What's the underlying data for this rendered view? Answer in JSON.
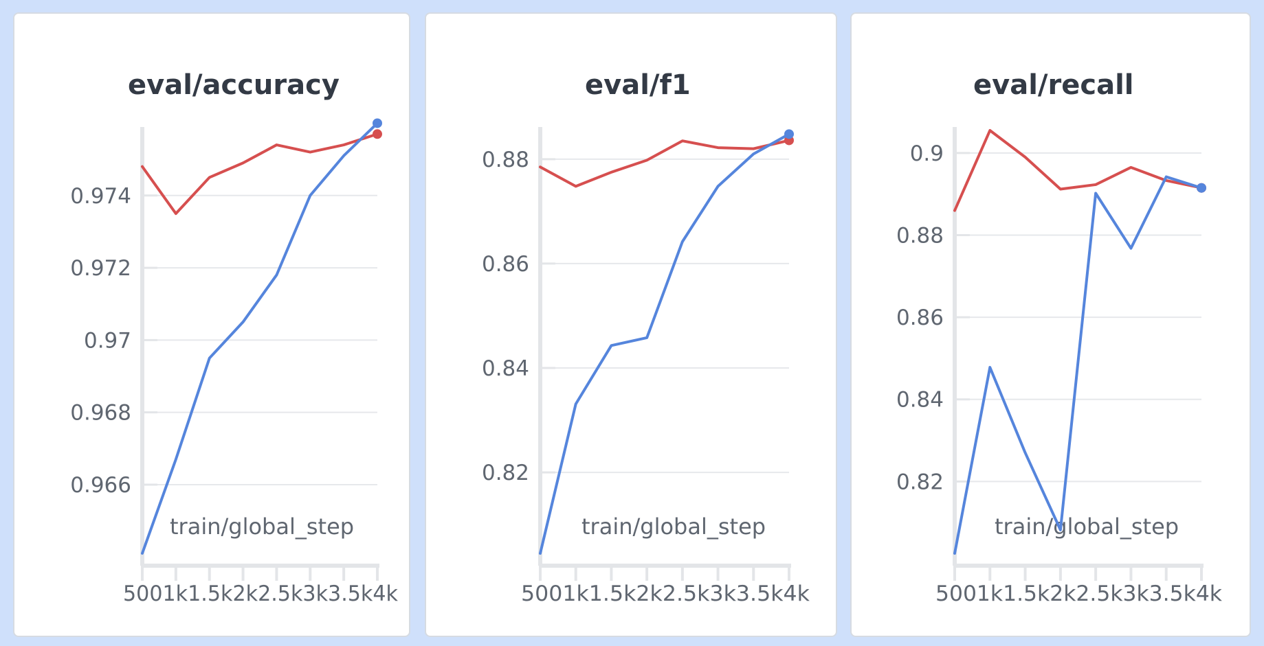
{
  "colors": {
    "red_series": "#d64f4f",
    "blue_series": "#5585dc",
    "axis": "#e3e5e8",
    "grid": "#e6e8eb"
  },
  "chart_data": [
    {
      "type": "line",
      "title": "eval/accuracy",
      "xlabel": "train/global_step",
      "ylabel": "",
      "x": [
        500,
        1000,
        1500,
        2000,
        2500,
        3000,
        3500,
        4000
      ],
      "xticks": [
        500,
        1000,
        1500,
        2000,
        2500,
        3000,
        3500,
        4000
      ],
      "xtick_labels": [
        "500",
        "1k",
        "1.5k",
        "2k",
        "2.5k",
        "3k",
        "3.5k",
        "4k"
      ],
      "yticks": [
        0.966,
        0.968,
        0.97,
        0.972,
        0.974
      ],
      "ytick_labels": [
        "0.966",
        "0.968",
        "0.97",
        "0.972",
        "0.974"
      ],
      "xlim": [
        500,
        4000
      ],
      "ylim": [
        0.9641,
        0.9758
      ],
      "grid": true,
      "series": [
        {
          "color": "red",
          "values": [
            0.9748,
            0.9735,
            0.9745,
            0.9749,
            0.9754,
            0.9752,
            0.9754,
            0.9757
          ]
        },
        {
          "color": "blue",
          "values": [
            0.9641,
            0.9667,
            0.9695,
            0.9705,
            0.9718,
            0.974,
            0.9751,
            0.976
          ]
        }
      ]
    },
    {
      "type": "line",
      "title": "eval/f1",
      "xlabel": "train/global_step",
      "ylabel": "",
      "x": [
        500,
        1000,
        1500,
        2000,
        2500,
        3000,
        3500,
        4000
      ],
      "xticks": [
        500,
        1000,
        1500,
        2000,
        2500,
        3000,
        3500,
        4000
      ],
      "xtick_labels": [
        "500",
        "1k",
        "1.5k",
        "2k",
        "2.5k",
        "3k",
        "3.5k",
        "4k"
      ],
      "yticks": [
        0.82,
        0.84,
        0.86,
        0.88
      ],
      "ytick_labels": [
        "0.82",
        "0.84",
        "0.86",
        "0.88"
      ],
      "xlim": [
        500,
        4000
      ],
      "ylim": [
        0.8045,
        0.8855
      ],
      "grid": true,
      "series": [
        {
          "color": "red",
          "values": [
            0.8785,
            0.8748,
            0.8775,
            0.8798,
            0.8835,
            0.8822,
            0.882,
            0.8836
          ]
        },
        {
          "color": "blue",
          "values": [
            0.8045,
            0.8331,
            0.8443,
            0.8458,
            0.8642,
            0.8748,
            0.881,
            0.8848
          ]
        }
      ]
    },
    {
      "type": "line",
      "title": "eval/recall",
      "xlabel": "train/global_step",
      "ylabel": "",
      "x": [
        500,
        1000,
        1500,
        2000,
        2500,
        3000,
        3500,
        4000
      ],
      "xticks": [
        500,
        1000,
        1500,
        2000,
        2500,
        3000,
        3500,
        4000
      ],
      "xtick_labels": [
        "500",
        "1k",
        "1.5k",
        "2k",
        "2.5k",
        "3k",
        "3.5k",
        "4k"
      ],
      "yticks": [
        0.82,
        0.84,
        0.86,
        0.88,
        0.9
      ],
      "ytick_labels": [
        "0.82",
        "0.84",
        "0.86",
        "0.88",
        "0.9"
      ],
      "xlim": [
        500,
        4000
      ],
      "ylim": [
        0.8025,
        0.9055
      ],
      "grid": true,
      "series": [
        {
          "color": "red",
          "values": [
            0.886,
            0.9055,
            0.899,
            0.8912,
            0.8923,
            0.8965,
            0.8933,
            0.8915
          ]
        },
        {
          "color": "blue",
          "values": [
            0.8025,
            0.8478,
            0.827,
            0.8082,
            0.8902,
            0.8768,
            0.8942,
            0.8915
          ]
        }
      ]
    }
  ]
}
